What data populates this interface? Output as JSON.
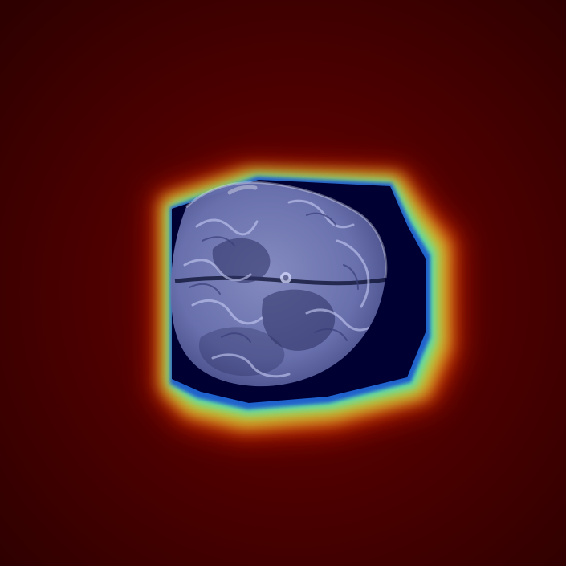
{
  "image": {
    "subject": "",
    "colors": {
      "background_dark": "#3a0000",
      "background_mid": "#5a0000",
      "ring_red": "#ff2a00",
      "ring_orange": "#ff9a1f",
      "ring_yellow": "#e7ff3a",
      "ring_green": "#5dff7a",
      "ring_cyan": "#23d8ff",
      "ring_blue": "#0b3bd6",
      "core_navy": "#000033",
      "tissue_light": "#b7bde6",
      "tissue_mid": "#7a81b6",
      "tissue_dark": "#2b2f62",
      "scalp_white": "#f3f5ff"
    }
  }
}
